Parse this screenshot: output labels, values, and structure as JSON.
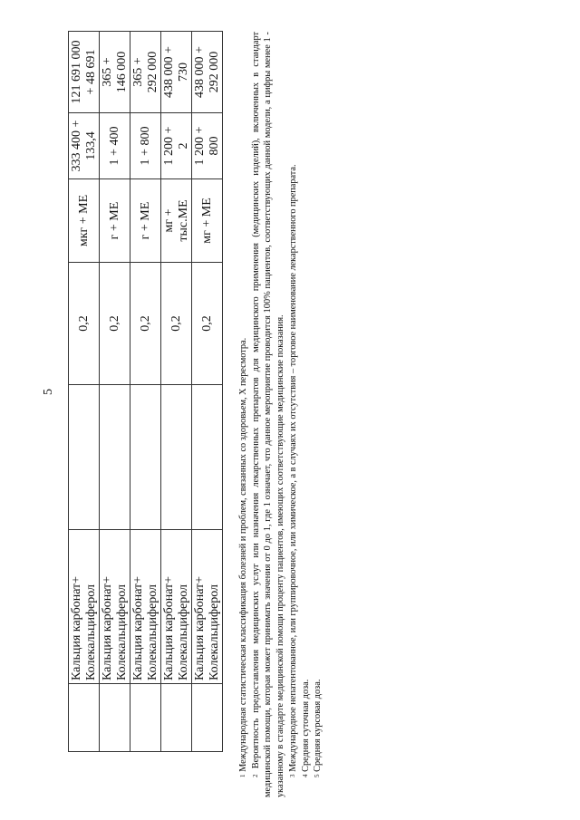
{
  "page_number": "5",
  "table": {
    "rows": [
      {
        "col1": "",
        "drug": [
          "Кальция карбонат+",
          "Колекальциферол"
        ],
        "col3": "",
        "probability": "0,2",
        "units": [
          "мкг + МЕ"
        ],
        "daily_dose": [
          "333 400 +",
          "133,4"
        ],
        "course_dose": [
          "121 691 000",
          "+ 48 691"
        ]
      },
      {
        "col1": "",
        "drug": [
          "Кальция карбонат+",
          "Колекальциферол"
        ],
        "col3": "",
        "probability": "0,2",
        "units": [
          "г + МЕ"
        ],
        "daily_dose": [
          "1 + 400"
        ],
        "course_dose": [
          "365 +",
          "146 000"
        ]
      },
      {
        "col1": "",
        "drug": [
          "Кальция карбонат+",
          "Колекальциферол"
        ],
        "col3": "",
        "probability": "0,2",
        "units": [
          "г + МЕ"
        ],
        "daily_dose": [
          "1 + 800"
        ],
        "course_dose": [
          "365 +",
          "292 000"
        ]
      },
      {
        "col1": "",
        "drug": [
          "Кальция карбонат+",
          "Колекальциферол"
        ],
        "col3": "",
        "probability": "0,2",
        "units": [
          "мг +",
          "тыс.МЕ"
        ],
        "daily_dose": [
          "1 200 +",
          "2"
        ],
        "course_dose": [
          "438 000 +",
          "730"
        ]
      },
      {
        "col1": "",
        "drug": [
          "Кальция карбонат+",
          "Колекальциферол"
        ],
        "col3": "",
        "probability": "0,2",
        "units": [
          "мг + МЕ"
        ],
        "daily_dose": [
          "1 200 +",
          "800"
        ],
        "course_dose": [
          "438 000 +",
          "292 000"
        ]
      }
    ]
  },
  "footnotes": [
    {
      "mark": "1",
      "text": "Международная статистическая классификация болезней и проблем, связанных со здоровьем, X пересмотра."
    },
    {
      "mark": "2",
      "text": "Вероятность предоставления медицинских услуг или назначения лекарственных препаратов для медицинского применения (медицинских изделий), включенных в стандарт медицинской помощи, которая может принимать значения от 0 до 1, где 1 означает, что данное мероприятие проводится 100% пациентов, соответствующих данной модели, а цифры менее 1 - указанному в стандарте медицинской помощи проценту пациентов, имеющих соответствующие медицинские показания."
    },
    {
      "mark": "3",
      "text": "Международное непатентованное, или группировочное, или химическое, а в случаях их отсутствия – торговое наименование лекарственного препарата."
    },
    {
      "mark": "4",
      "text": "Средняя суточная доза."
    },
    {
      "mark": "5",
      "text": "Средняя курсовая доза."
    }
  ]
}
